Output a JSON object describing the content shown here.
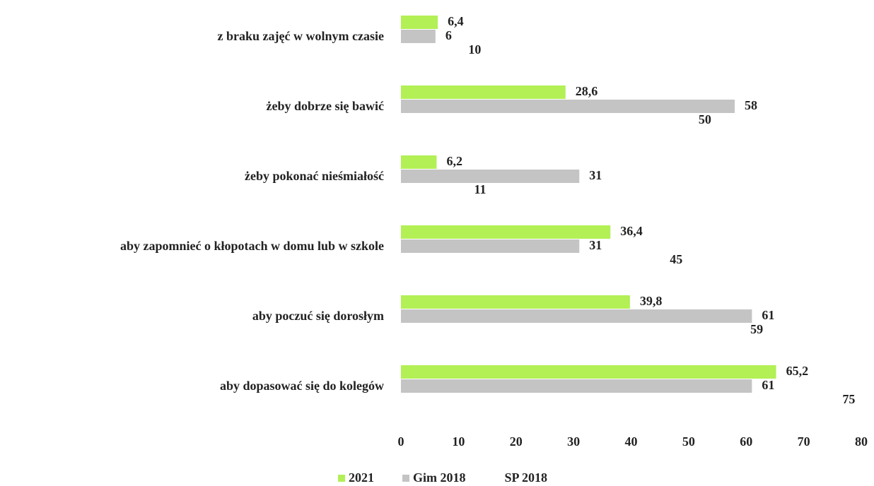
{
  "chart_data": {
    "type": "bar",
    "orientation": "horizontal",
    "categories": [
      "z braku zajęć w wolnym czasie",
      "żeby dobrze się bawić",
      "żeby pokonać nieśmiałość",
      "aby zapomnieć o kłopotach w domu lub w szkole",
      "aby poczuć się dorosłym",
      "aby dopasować się do kolegów"
    ],
    "series": [
      {
        "name": "2021",
        "color": "#b2f055",
        "values": [
          6.4,
          28.6,
          6.2,
          36.4,
          39.8,
          65.2
        ],
        "value_labels": [
          "6,4",
          "28,6",
          "6,2",
          "36,4",
          "39,8",
          "65,2"
        ]
      },
      {
        "name": "Gim 2018",
        "color": "#c4c4c4",
        "values": [
          6,
          58,
          31,
          31,
          61,
          61
        ]
      },
      {
        "name": "SP 2018",
        "color": "#ffffff",
        "values": [
          10,
          50,
          11,
          45,
          59,
          75
        ]
      }
    ],
    "xlim": [
      0,
      80
    ],
    "xticks": [
      0,
      10,
      20,
      30,
      40,
      50,
      60,
      70,
      80
    ],
    "grid": false,
    "legend": "bottom"
  }
}
